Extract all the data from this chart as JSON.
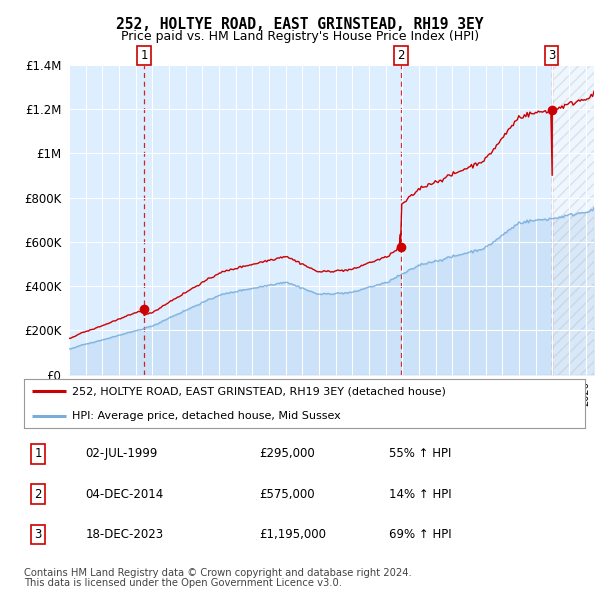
{
  "title": "252, HOLTYE ROAD, EAST GRINSTEAD, RH19 3EY",
  "subtitle": "Price paid vs. HM Land Registry's House Price Index (HPI)",
  "legend_line1": "252, HOLTYE ROAD, EAST GRINSTEAD, RH19 3EY (detached house)",
  "legend_line2": "HPI: Average price, detached house, Mid Sussex",
  "footer1": "Contains HM Land Registry data © Crown copyright and database right 2024.",
  "footer2": "This data is licensed under the Open Government Licence v3.0.",
  "transactions": [
    {
      "num": 1,
      "date": "02-JUL-1999",
      "price": "£295,000",
      "hpi": "55% ↑ HPI",
      "year": 1999.5,
      "value": 295000
    },
    {
      "num": 2,
      "date": "04-DEC-2014",
      "price": "£575,000",
      "hpi": "14% ↑ HPI",
      "year": 2014.917,
      "value": 575000
    },
    {
      "num": 3,
      "date": "18-DEC-2023",
      "price": "£1,195,000",
      "hpi": "69% ↑ HPI",
      "year": 2023.958,
      "value": 1195000
    }
  ],
  "hpi_color": "#7aaddb",
  "price_color": "#cc0000",
  "transaction_color": "#cc0000",
  "dashed_line_color": "#cc0000",
  "background_color": "#ddeeff",
  "hatch_color": "#bbbbbb",
  "ylim": [
    0,
    1400000
  ],
  "xlim_start": 1995.0,
  "xlim_end": 2026.5,
  "future_start": 2024.0
}
